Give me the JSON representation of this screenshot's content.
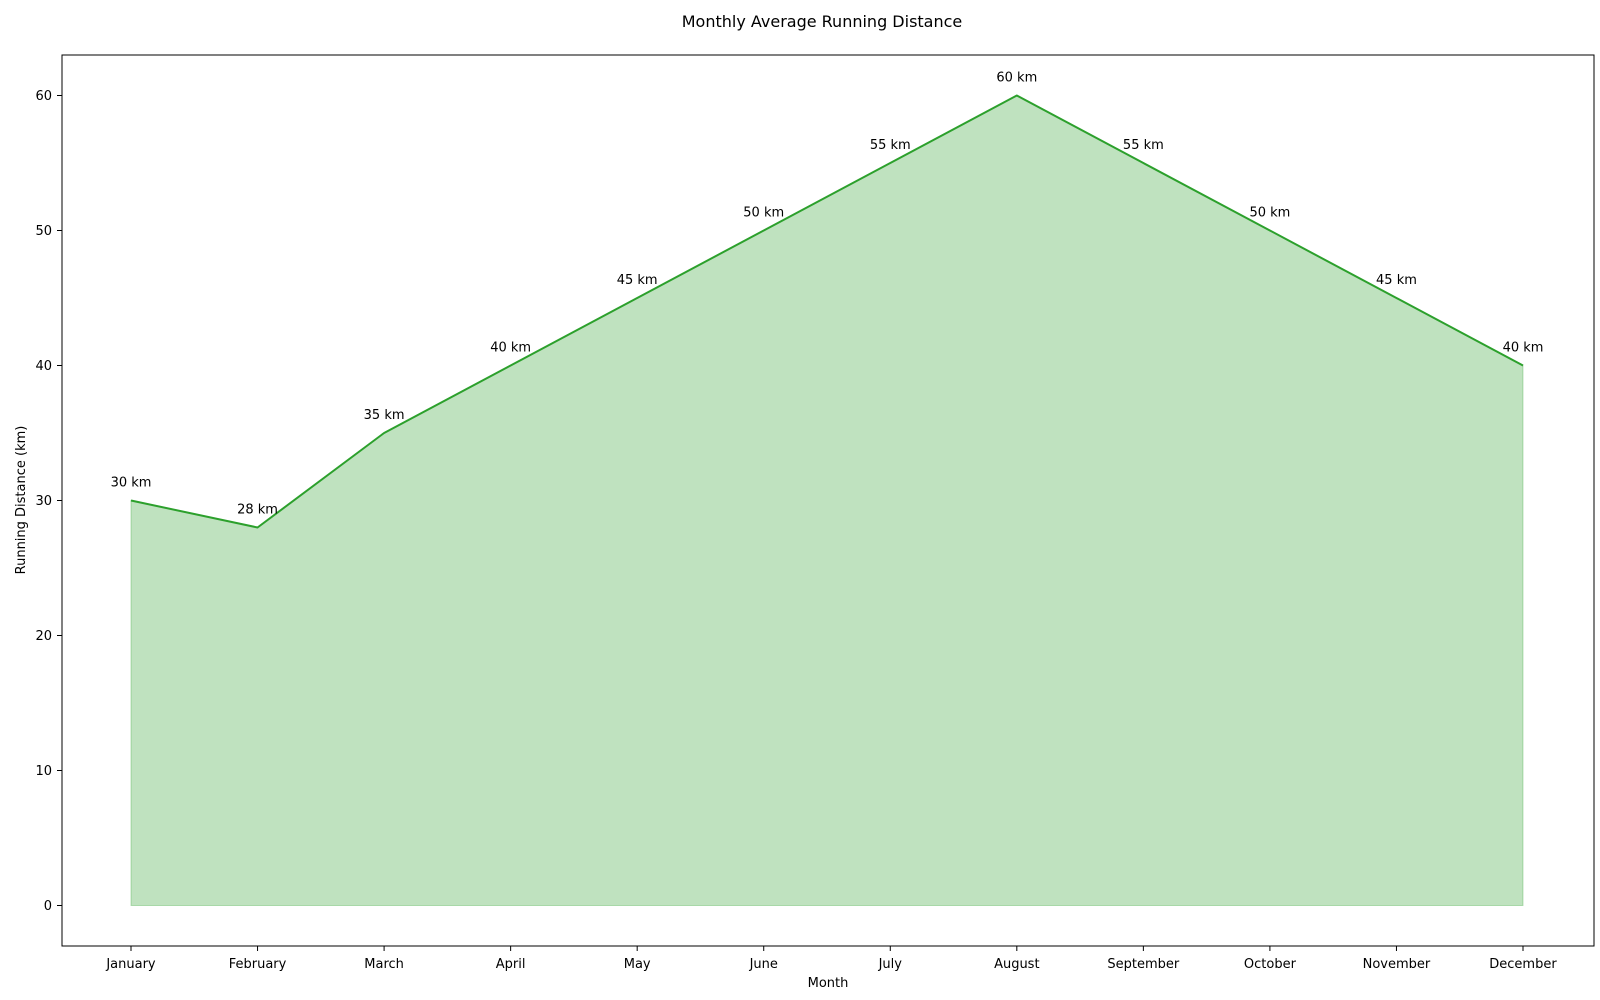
{
  "chart_data": {
    "type": "area",
    "title": "Monthly Average Running Distance",
    "xlabel": "Month",
    "ylabel": "Running Distance (km)",
    "categories": [
      "January",
      "February",
      "March",
      "April",
      "May",
      "June",
      "July",
      "August",
      "September",
      "October",
      "November",
      "December"
    ],
    "values": [
      30,
      28,
      35,
      40,
      45,
      50,
      55,
      60,
      55,
      50,
      45,
      40
    ],
    "data_labels": [
      "30 km",
      "28 km",
      "35 km",
      "40 km",
      "45 km",
      "50 km",
      "55 km",
      "60 km",
      "55 km",
      "50 km",
      "45 km",
      "40 km"
    ],
    "ylim": [
      -3,
      63
    ],
    "yticks": [
      0,
      10,
      20,
      30,
      40,
      50,
      60
    ],
    "grid": false,
    "line_color": "#2ca02c",
    "fill_color": "#2ca02c"
  }
}
